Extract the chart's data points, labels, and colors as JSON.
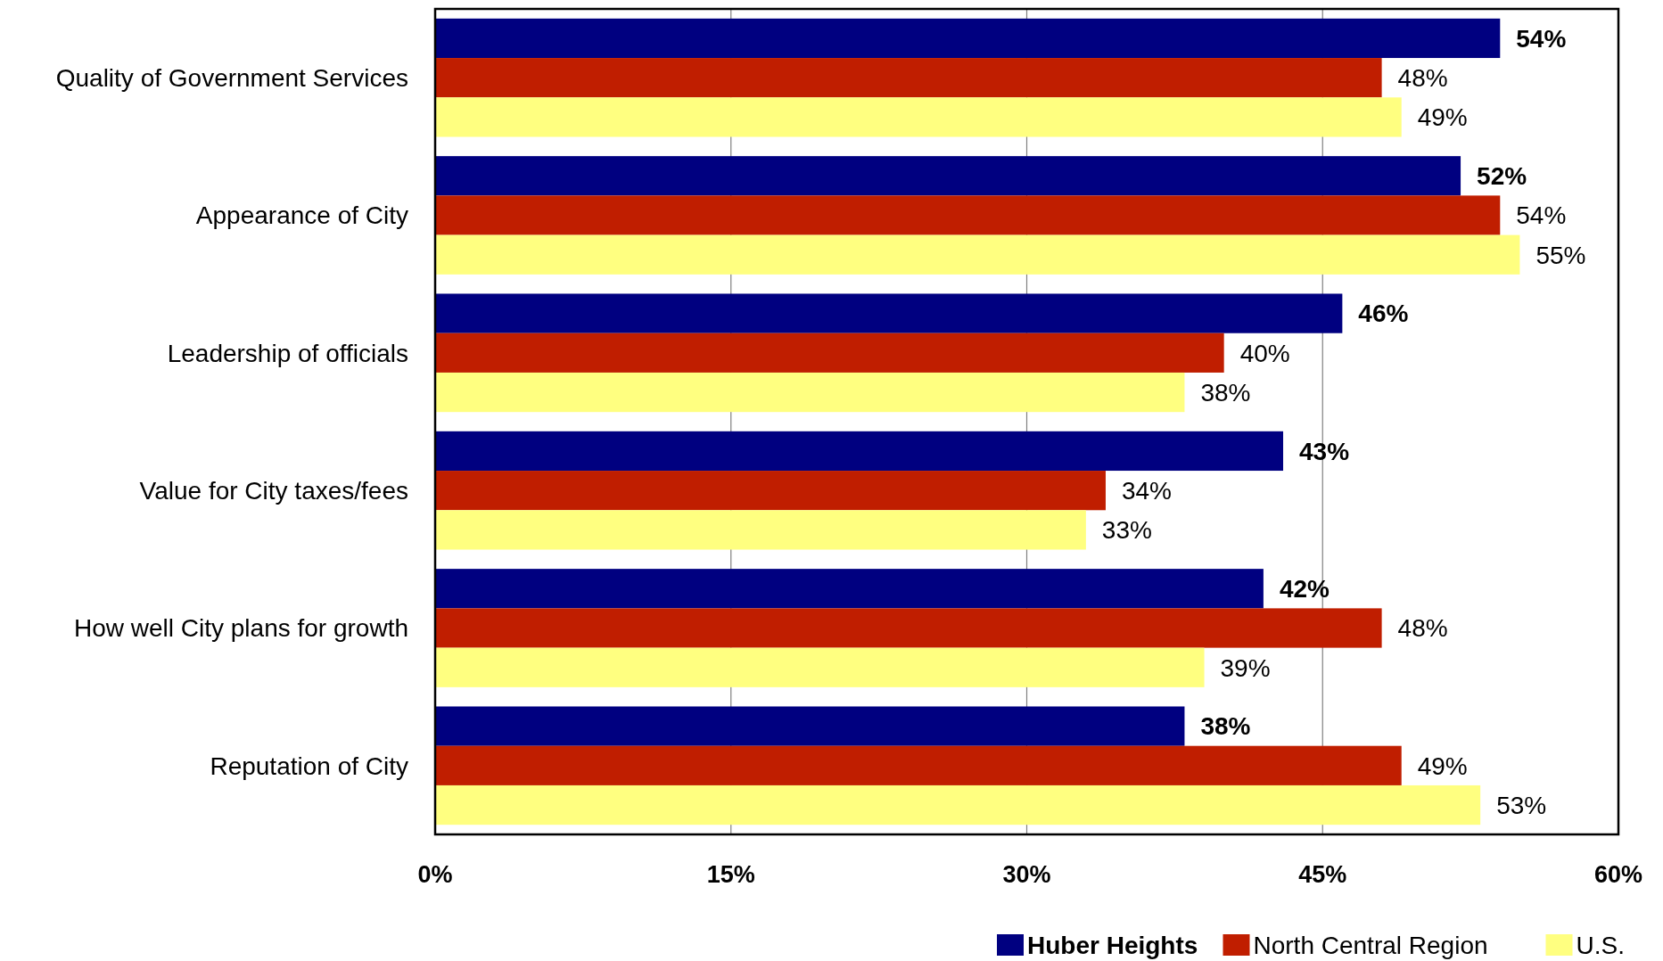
{
  "chart_data": {
    "type": "bar",
    "orientation": "horizontal",
    "categories": [
      "Quality of Government Services",
      "Appearance of City",
      "Leadership of officials",
      "Value for City taxes/fees",
      "How well City plans for growth",
      "Reputation of City"
    ],
    "series": [
      {
        "name": "Huber Heights",
        "color": "#000080",
        "values": [
          54,
          52,
          46,
          43,
          42,
          38
        ],
        "value_labels": [
          "54%",
          "52%",
          "46%",
          "43%",
          "42%",
          "38%"
        ]
      },
      {
        "name": "North Central Region",
        "color": "#c01e00",
        "values": [
          48,
          54,
          40,
          34,
          48,
          49
        ],
        "value_labels": [
          "48%",
          "54%",
          "40%",
          "34%",
          "48%",
          "49%"
        ]
      },
      {
        "name": "U.S.",
        "color": "#ffff80",
        "values": [
          49,
          55,
          38,
          33,
          39,
          53
        ],
        "value_labels": [
          "49%",
          "55%",
          "38%",
          "33%",
          "39%",
          "53%"
        ]
      }
    ],
    "xlim": [
      0,
      60
    ],
    "xticks": [
      {
        "value": 0,
        "label": "0%"
      },
      {
        "value": 15,
        "label": "15%"
      },
      {
        "value": 30,
        "label": "30%"
      },
      {
        "value": 45,
        "label": "45%"
      },
      {
        "value": 60,
        "label": "60%"
      }
    ],
    "grid": "x",
    "legend": "bottom"
  }
}
